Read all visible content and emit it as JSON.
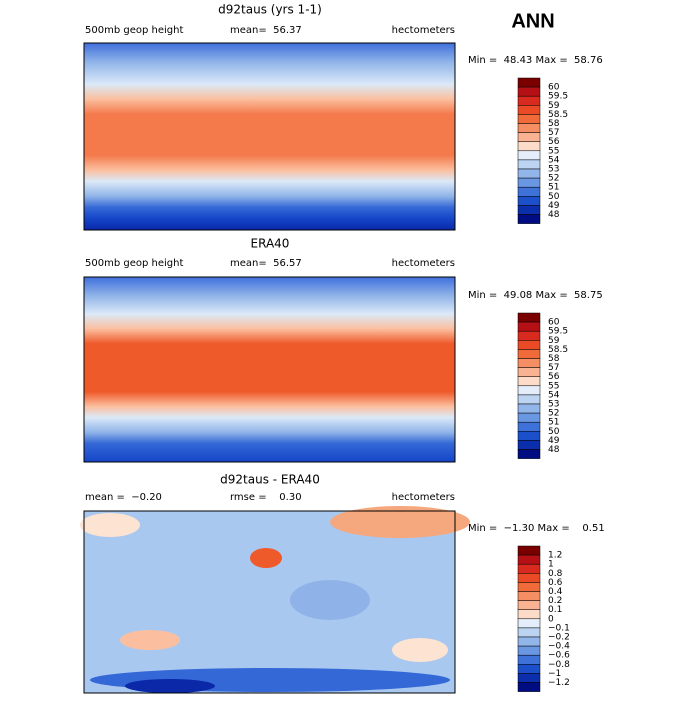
{
  "corner_label": "ANN",
  "panels": [
    {
      "title": "d92taus (yrs 1-1)",
      "left": "500mb geop height",
      "center": "mean=  56.37",
      "right": "hectometers",
      "range": "Min =  48.43 Max =  58.76",
      "colorbar_labels": [
        "60",
        "59.5",
        "59",
        "58.5",
        "58",
        "57",
        "56",
        "55",
        "54",
        "53",
        "52",
        "51",
        "50",
        "49",
        "48"
      ]
    },
    {
      "title": "ERA40",
      "left": "500mb geop height",
      "center": "mean=  56.57",
      "right": "hectometers",
      "range": "Min =  49.08 Max =  58.75",
      "colorbar_labels": [
        "60",
        "59.5",
        "59",
        "58.5",
        "58",
        "57",
        "56",
        "55",
        "54",
        "53",
        "52",
        "51",
        "50",
        "49",
        "48"
      ]
    },
    {
      "title": "d92taus - ERA40",
      "left": "mean =  −0.20",
      "center": "rmse =    0.30",
      "right": "hectometers",
      "range": "Min =  −1.30 Max =    0.51",
      "colorbar_labels": [
        "1.2",
        "1",
        "0.8",
        "0.6",
        "0.4",
        "0.2",
        "0.1",
        "0",
        "−0.1",
        "−0.2",
        "−0.4",
        "−0.6",
        "−0.8",
        "−1",
        "−1.2"
      ]
    }
  ]
}
